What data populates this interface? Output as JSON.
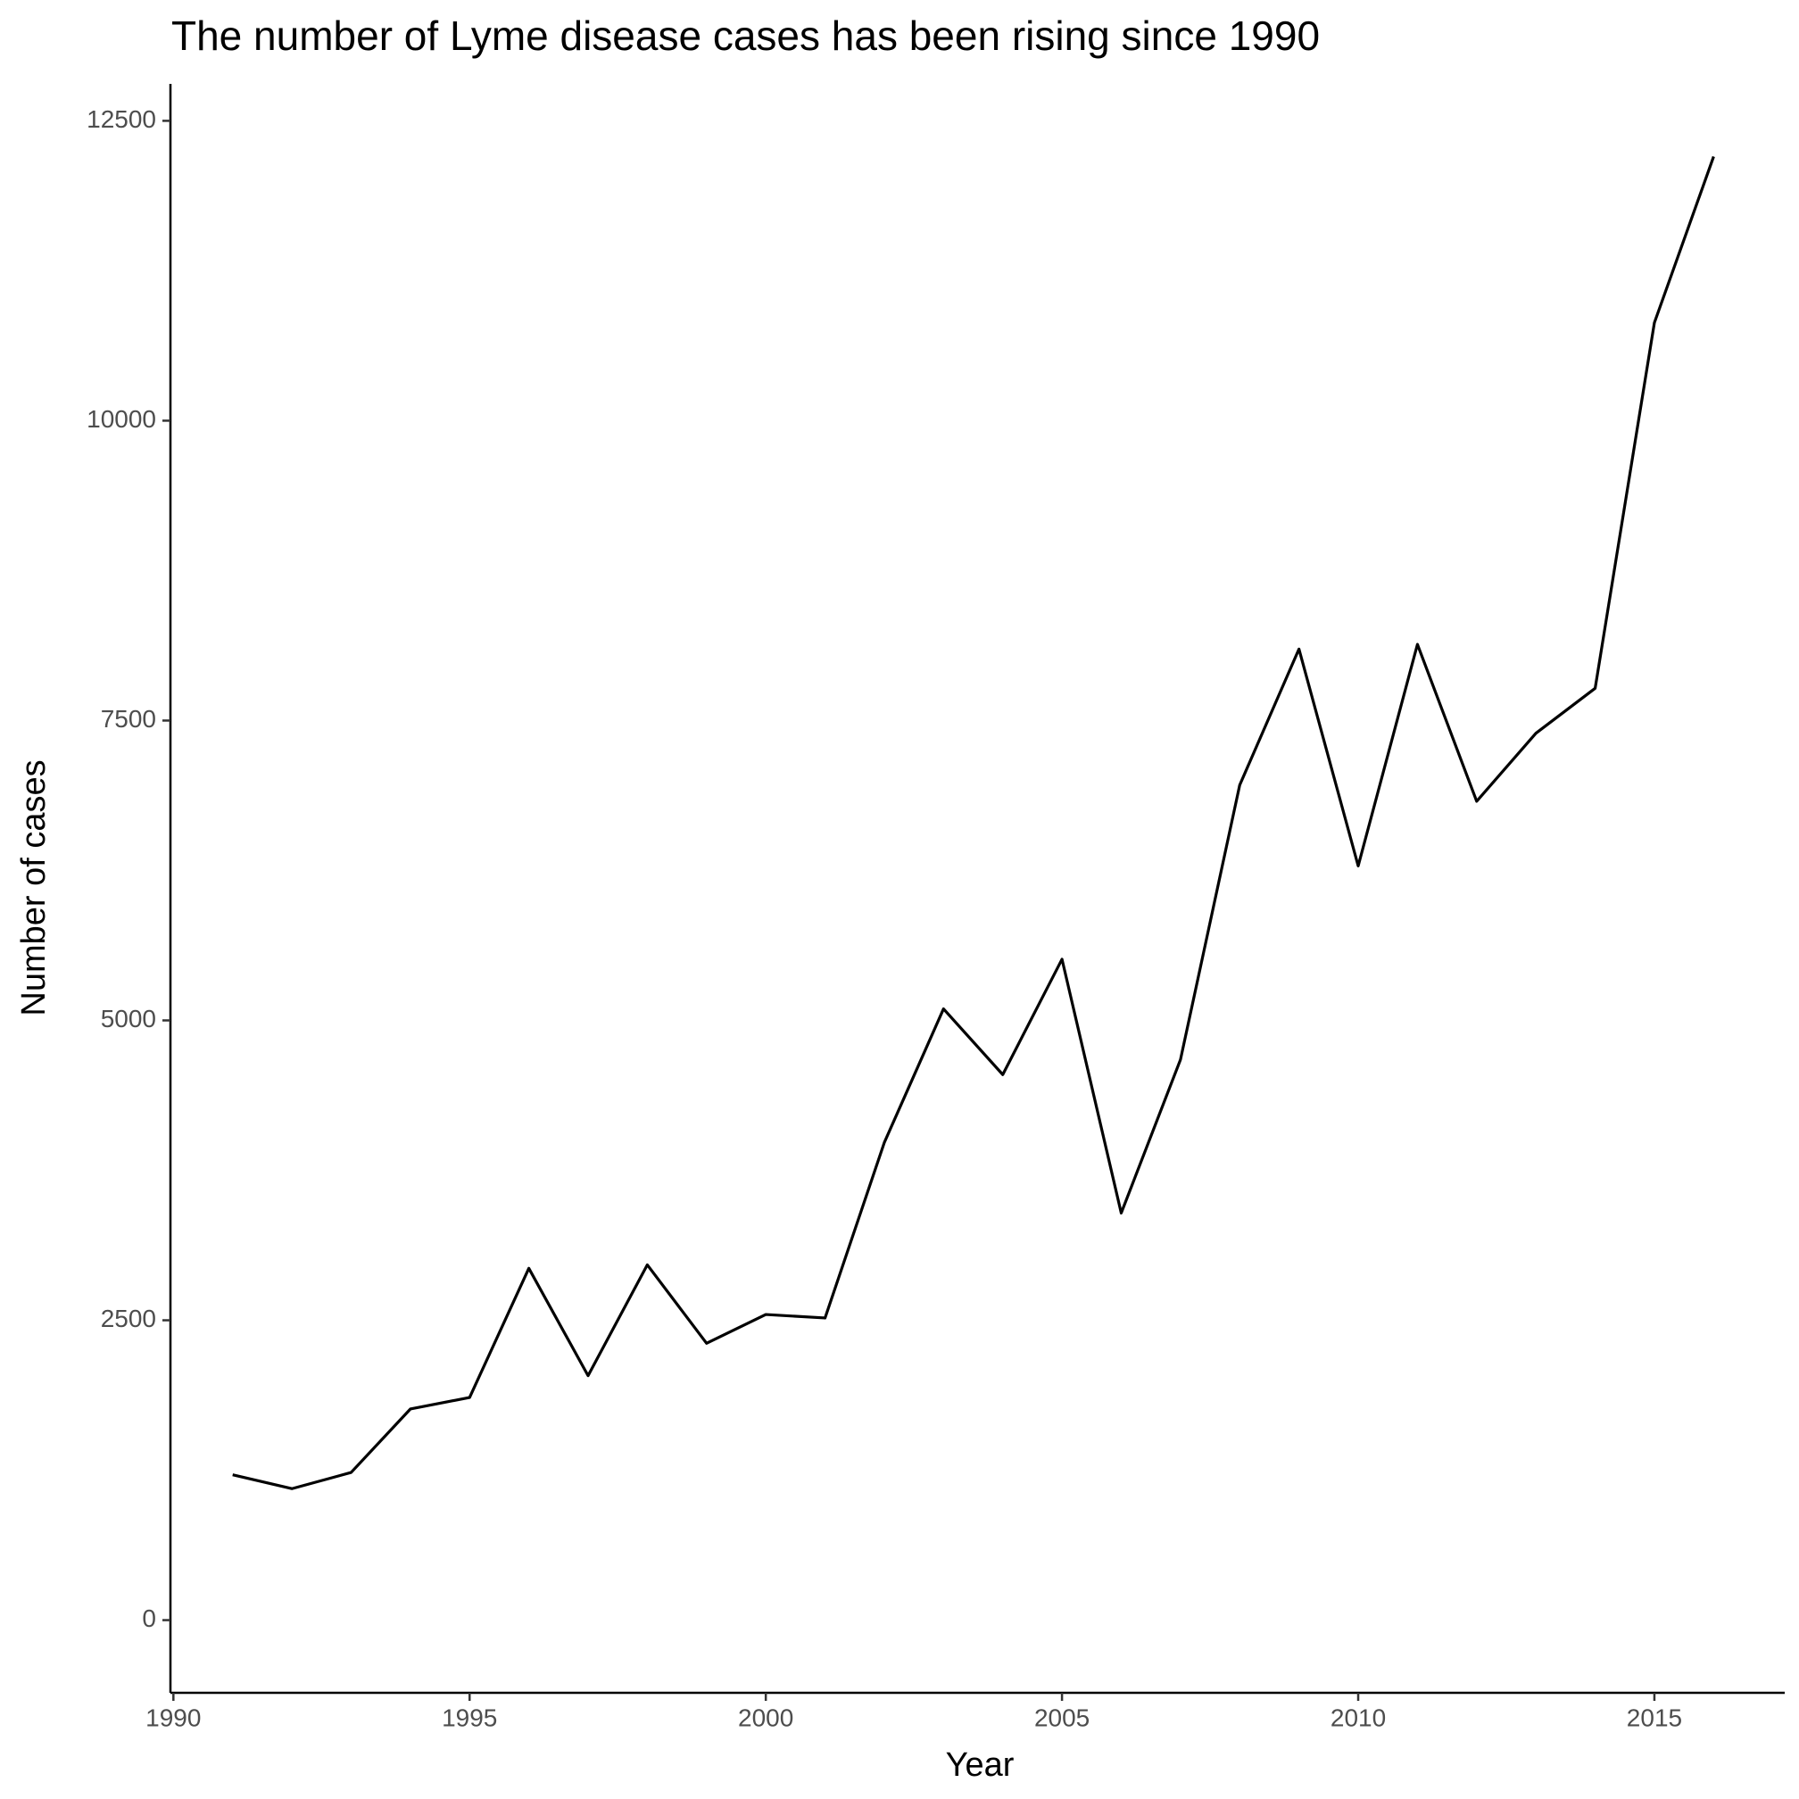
{
  "chart_data": {
    "type": "line",
    "title": "The number of Lyme disease cases has been rising since 1990",
    "x_label": "Year",
    "y_label": "Number of cases",
    "x": [
      1991,
      1992,
      1993,
      1994,
      1995,
      1996,
      1997,
      1998,
      1999,
      2000,
      2001,
      2002,
      2003,
      2004,
      2005,
      2006,
      2007,
      2008,
      2009,
      2010,
      2011,
      2012,
      2013,
      2014,
      2015,
      2016
    ],
    "series": [
      {
        "color": "#000000",
        "values": [
          1212,
          1096,
          1231,
          1760,
          1856,
          2933,
          2038,
          2962,
          2308,
          2548,
          2519,
          3981,
          5096,
          4548,
          5510,
          3394,
          4673,
          6962,
          8096,
          6288,
          8135,
          6827,
          7394,
          7769,
          10817,
          12202
        ]
      }
    ],
    "xlim": [
      1989.95,
      2017.2
    ],
    "xticks": [
      1990,
      1995,
      2000,
      2005,
      2010,
      2015
    ],
    "ylim": [
      -606,
      12808
    ],
    "yticks": [
      0,
      2500,
      5000,
      7500,
      10000,
      12500
    ],
    "grid": false
  }
}
